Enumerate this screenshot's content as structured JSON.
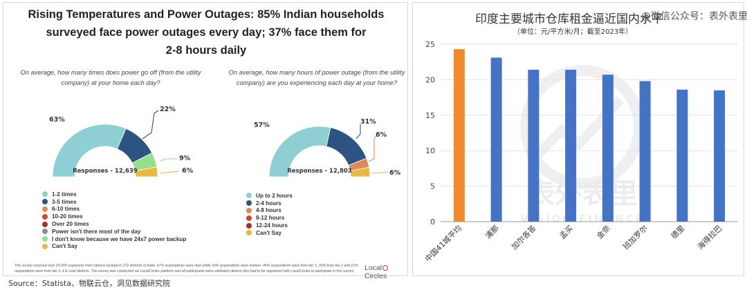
{
  "left": {
    "title_lines": [
      "Rising Temperatures and Power Outages: 85% Indian households",
      "surveyed face power outages every day; 37% face them for",
      "2-8 hours daily"
    ],
    "chart1_question_lines": [
      "On average, how many times does power go off (from the utility",
      "company) at your home each day?"
    ],
    "chart2_question_lines": [
      "On average, how many hours of power outage (from the utility",
      "company) are you experiencing each day at your home?"
    ],
    "footnote_lines": [
      "The survey received over 25,000 responses from citizens located in 272 districts of India. 67% respondents were men while 33% respondents were women. 46% respondents were from tier 1, 33% from tier 2 and 21%",
      "respondents were from tier 3, 4 & rural districts. The survey was conducted via LocalCircles platform and all participants were validated citizens who had to be registered with LocalCircles to participate in this survey."
    ],
    "logo_parts": [
      "Local",
      "Circles"
    ]
  },
  "right": {
    "title": "印度主要城市仓库租金逼近国内水平",
    "subtitle": "（单位：元/平方米/月；截至2023年）",
    "watermark_top": "@微信公众号：表外表里",
    "watermark_center": "表外表里",
    "watermark_sub": "VISION FINANCE"
  },
  "source": "Source：Statista、物联云仓，洞见数据研究院",
  "chart_data": [
    {
      "type": "pie",
      "subtype": "half-donut",
      "center_label": "Responses - 12,639",
      "categories": [
        "1-2 times",
        "3-5 times",
        "6-10 times",
        "10-20 times",
        "Over 20 times",
        "Power isn't there most of the day",
        "I don't know because we have 24x7 power backup",
        "Can't Say"
      ],
      "values": [
        63,
        22,
        0,
        0,
        0,
        0,
        9,
        6
      ],
      "colors": [
        "#8ecfd4",
        "#2d5382",
        "#e08a5c",
        "#d8432f",
        "#a5302b",
        "#8c8c8c",
        "#94e08a",
        "#e8b842"
      ],
      "data_labels": [
        "63%",
        "22%",
        "",
        "",
        "",
        "",
        "9%",
        "6%"
      ],
      "legend_placement": "bottom-left"
    },
    {
      "type": "pie",
      "subtype": "half-donut",
      "center_label": "Responses - 12,803",
      "categories": [
        "Up to 2 hours",
        "2-4 hours",
        "4-8 hours",
        "8-12 hours",
        "12-24 hours",
        "Can't Say"
      ],
      "values": [
        57,
        31,
        6,
        0,
        0,
        6
      ],
      "colors": [
        "#8ecfd4",
        "#2d5382",
        "#e08a5c",
        "#d8432f",
        "#a5302b",
        "#e8b842"
      ],
      "data_labels": [
        "57%",
        "31%",
        "6%",
        "",
        "",
        "6%"
      ],
      "legend_placement": "bottom-left"
    },
    {
      "type": "bar",
      "categories": [
        "中国41城平均",
        "浦那",
        "加尔各答",
        "孟买",
        "金奈",
        "班加罗尔",
        "德里",
        "海得拉巴"
      ],
      "values": [
        24.3,
        23.1,
        21.4,
        21.4,
        20.7,
        19.8,
        18.6,
        18.5
      ],
      "colors": [
        "#f08a30",
        "#4472c4",
        "#4472c4",
        "#4472c4",
        "#4472c4",
        "#4472c4",
        "#4472c4",
        "#4472c4"
      ],
      "yticks": [
        0,
        5,
        10,
        15,
        20,
        25
      ],
      "ylim": [
        0,
        25
      ],
      "grid": true,
      "legend": "none"
    }
  ]
}
